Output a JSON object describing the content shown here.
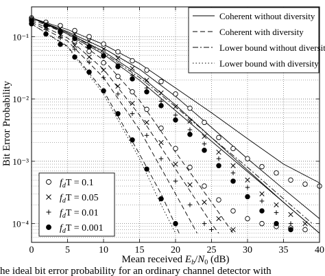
{
  "caption": "he ideal bit error probability for an ordinary channel detector with",
  "chart_data": {
    "type": "line",
    "xlabel": "Mean received E_b/N_0 (dB)",
    "ylabel": "Bit Error Probability",
    "xlim": [
      0,
      40
    ],
    "ylim": [
      5e-05,
      0.3
    ],
    "yscale": "log",
    "x_ticks": [
      "0",
      "5",
      "10",
      "15",
      "20",
      "25",
      "30",
      "35",
      "40"
    ],
    "y_ticks": [
      "10⁻⁴",
      "10⁻³",
      "10⁻²",
      "10⁻¹"
    ],
    "grid": true,
    "legend_top": {
      "position": "top-right",
      "entries": [
        {
          "label": "Coherent without diversity",
          "style": "solid"
        },
        {
          "label": "Coherent with diversity",
          "style": "dashed"
        },
        {
          "label": "Lower bound without diversity",
          "style": "dashdot"
        },
        {
          "label": "Lower bound with diversity",
          "style": "dotted"
        }
      ]
    },
    "legend_bottom": {
      "position": "bottom-left",
      "entries": [
        {
          "marker": "circle-open",
          "prefix": "f",
          "sub": "d",
          "suffix": "T = 0.1"
        },
        {
          "marker": "x",
          "prefix": "f",
          "sub": "d",
          "suffix": "T = 0.05"
        },
        {
          "marker": "plus",
          "prefix": "f",
          "sub": "d",
          "suffix": "T = 0.01"
        },
        {
          "marker": "circle-filled",
          "prefix": "f",
          "sub": "d",
          "suffix": "T = 0.001"
        }
      ]
    },
    "line_series": [
      {
        "style": "solid",
        "points": [
          [
            0,
            0.2
          ],
          [
            5,
            0.13
          ],
          [
            10,
            0.075
          ],
          [
            15,
            0.037
          ],
          [
            20,
            0.015
          ],
          [
            25,
            0.006
          ],
          [
            30,
            0.0023
          ],
          [
            35,
            0.0009
          ],
          [
            40,
            0.00045
          ]
        ]
      },
      {
        "style": "solid",
        "points": [
          [
            0,
            0.2
          ],
          [
            5,
            0.12
          ],
          [
            10,
            0.065
          ],
          [
            15,
            0.03
          ],
          [
            20,
            0.011
          ],
          [
            25,
            0.0035
          ],
          [
            30,
            0.0011
          ],
          [
            35,
            0.00036
          ],
          [
            40,
            0.00012
          ]
        ]
      },
      {
        "style": "solid",
        "points": [
          [
            0,
            0.2
          ],
          [
            5,
            0.115
          ],
          [
            10,
            0.058
          ],
          [
            15,
            0.024
          ],
          [
            20,
            0.008
          ],
          [
            25,
            0.0024
          ],
          [
            30,
            0.00072
          ],
          [
            35,
            0.00022
          ],
          [
            40,
            7e-05
          ]
        ]
      },
      {
        "style": "solid",
        "points": [
          [
            0,
            0.2
          ],
          [
            5,
            0.11
          ],
          [
            10,
            0.052
          ],
          [
            15,
            0.02
          ],
          [
            20,
            0.0065
          ],
          [
            25,
            0.0021
          ],
          [
            30,
            0.00068
          ],
          [
            35,
            0.00022
          ],
          [
            40,
            7e-05
          ]
        ]
      },
      {
        "style": "dashed",
        "points": [
          [
            0,
            0.19
          ],
          [
            5,
            0.11
          ],
          [
            10,
            0.042
          ],
          [
            15,
            0.0095
          ],
          [
            20,
            0.0014
          ],
          [
            25,
            0.00022
          ],
          [
            28,
            7e-05
          ]
        ]
      },
      {
        "style": "dashed",
        "points": [
          [
            0,
            0.18
          ],
          [
            5,
            0.095
          ],
          [
            10,
            0.03
          ],
          [
            15,
            0.0055
          ],
          [
            20,
            0.00075
          ],
          [
            25,
            0.0001
          ],
          [
            26,
            7e-05
          ]
        ]
      },
      {
        "style": "dashed",
        "points": [
          [
            0,
            0.17
          ],
          [
            5,
            0.085
          ],
          [
            10,
            0.022
          ],
          [
            15,
            0.0032
          ],
          [
            20,
            0.0003
          ],
          [
            23,
            7e-05
          ]
        ]
      },
      {
        "style": "dashed",
        "points": [
          [
            0,
            0.16
          ],
          [
            5,
            0.07
          ],
          [
            10,
            0.0135
          ],
          [
            15,
            0.0013
          ],
          [
            18,
            0.0003
          ],
          [
            20.5,
            7e-05
          ]
        ]
      },
      {
        "style": "dashdot",
        "points": [
          [
            0,
            0.2
          ],
          [
            5,
            0.115
          ],
          [
            10,
            0.055
          ],
          [
            15,
            0.022
          ],
          [
            20,
            0.0075
          ],
          [
            25,
            0.0024
          ],
          [
            30,
            0.0008
          ],
          [
            35,
            0.00025
          ],
          [
            39,
            0.0001
          ]
        ]
      },
      {
        "style": "dotted",
        "points": [
          [
            0,
            0.16
          ],
          [
            5,
            0.068
          ],
          [
            10,
            0.012
          ],
          [
            15,
            0.0011
          ],
          [
            18,
            0.0002
          ],
          [
            20,
            7e-05
          ]
        ]
      }
    ],
    "marker_series": [
      {
        "name": "f_dT = 0.1",
        "marker": "circle-open",
        "points": [
          [
            0,
            0.2
          ],
          [
            2,
            0.17
          ],
          [
            4,
            0.15
          ],
          [
            6,
            0.125
          ],
          [
            8,
            0.1
          ],
          [
            10,
            0.076
          ],
          [
            12,
            0.057
          ],
          [
            14,
            0.041
          ],
          [
            16,
            0.029
          ],
          [
            18,
            0.019
          ],
          [
            20,
            0.012
          ],
          [
            22,
            0.0071
          ],
          [
            24,
            0.0042
          ],
          [
            26,
            0.0024
          ],
          [
            28,
            0.0016
          ],
          [
            30,
            0.0011
          ],
          [
            32,
            0.00082
          ],
          [
            34,
            0.00065
          ],
          [
            36,
            0.0005
          ],
          [
            38,
            0.00043
          ],
          [
            40,
            0.0004
          ]
        ]
      },
      {
        "name": "f_dT = 0.1",
        "marker": "circle-open",
        "points": [
          [
            0,
            0.19
          ],
          [
            2,
            0.15
          ],
          [
            4,
            0.12
          ],
          [
            6,
            0.085
          ],
          [
            8,
            0.058
          ],
          [
            10,
            0.038
          ],
          [
            12,
            0.023
          ],
          [
            14,
            0.013
          ],
          [
            16,
            0.0068
          ],
          [
            18,
            0.0034
          ],
          [
            20,
            0.0016
          ],
          [
            22,
            0.0008
          ],
          [
            24,
            0.0004
          ],
          [
            26,
            0.00024
          ],
          [
            28,
            0.00016
          ],
          [
            30,
            0.00012
          ],
          [
            32,
            0.0001
          ],
          [
            34,
            9e-05
          ],
          [
            36,
            8.5e-05
          ],
          [
            38,
            8e-05
          ]
        ]
      },
      {
        "name": "f_dT = 0.05",
        "marker": "x",
        "points": [
          [
            0,
            0.19
          ],
          [
            2,
            0.16
          ],
          [
            4,
            0.135
          ],
          [
            6,
            0.11
          ],
          [
            8,
            0.085
          ],
          [
            10,
            0.063
          ],
          [
            12,
            0.045
          ],
          [
            14,
            0.031
          ],
          [
            16,
            0.02
          ],
          [
            18,
            0.0125
          ],
          [
            20,
            0.0075
          ],
          [
            22,
            0.0044
          ],
          [
            24,
            0.0025
          ],
          [
            26,
            0.0014
          ],
          [
            28,
            0.00085
          ],
          [
            30,
            0.0005
          ],
          [
            32,
            0.0003
          ],
          [
            34,
            0.0002
          ],
          [
            36,
            0.00014
          ],
          [
            38,
            0.0001
          ]
        ]
      },
      {
        "name": "f_dT = 0.05",
        "marker": "x",
        "points": [
          [
            0,
            0.18
          ],
          [
            2,
            0.14
          ],
          [
            4,
            0.105
          ],
          [
            6,
            0.072
          ],
          [
            8,
            0.047
          ],
          [
            10,
            0.029
          ],
          [
            12,
            0.016
          ],
          [
            14,
            0.0085
          ],
          [
            16,
            0.0042
          ],
          [
            18,
            0.002
          ],
          [
            20,
            0.0009
          ],
          [
            22,
            0.00042
          ],
          [
            24,
            0.00022
          ],
          [
            26,
            0.00012
          ],
          [
            28,
            8e-05
          ]
        ]
      },
      {
        "name": "f_dT = 0.01",
        "marker": "plus",
        "points": [
          [
            0,
            0.19
          ],
          [
            2,
            0.155
          ],
          [
            4,
            0.125
          ],
          [
            6,
            0.097
          ],
          [
            8,
            0.073
          ],
          [
            10,
            0.052
          ],
          [
            12,
            0.036
          ],
          [
            14,
            0.024
          ],
          [
            16,
            0.015
          ],
          [
            18,
            0.0092
          ],
          [
            20,
            0.0055
          ],
          [
            22,
            0.0032
          ],
          [
            24,
            0.0019
          ],
          [
            26,
            0.0011
          ],
          [
            28,
            0.00065
          ],
          [
            30,
            0.00038
          ],
          [
            32,
            0.00023
          ],
          [
            34,
            0.00015
          ],
          [
            36,
            0.0001
          ]
        ]
      },
      {
        "name": "f_dT = 0.01",
        "marker": "plus",
        "points": [
          [
            0,
            0.17
          ],
          [
            2,
            0.13
          ],
          [
            4,
            0.095
          ],
          [
            6,
            0.063
          ],
          [
            8,
            0.039
          ],
          [
            10,
            0.022
          ],
          [
            12,
            0.012
          ],
          [
            14,
            0.0058
          ],
          [
            16,
            0.0026
          ],
          [
            18,
            0.0011
          ],
          [
            20,
            0.00048
          ],
          [
            22,
            0.0002
          ],
          [
            24,
            0.0001
          ],
          [
            25,
            8e-05
          ]
        ]
      },
      {
        "name": "f_dT = 0.001",
        "marker": "circle-filled",
        "points": [
          [
            0,
            0.18
          ],
          [
            2,
            0.15
          ],
          [
            4,
            0.12
          ],
          [
            6,
            0.093
          ],
          [
            8,
            0.069
          ],
          [
            10,
            0.049
          ],
          [
            12,
            0.033
          ],
          [
            14,
            0.021
          ],
          [
            16,
            0.013
          ],
          [
            18,
            0.0078
          ],
          [
            20,
            0.0046
          ],
          [
            22,
            0.0027
          ],
          [
            24,
            0.0015
          ],
          [
            26,
            0.00085
          ],
          [
            28,
            0.00048
          ],
          [
            30,
            0.00027
          ],
          [
            32,
            0.00016
          ],
          [
            34,
            0.0001
          ],
          [
            36,
            8e-05
          ]
        ]
      },
      {
        "name": "f_dT = 0.001",
        "marker": "circle-filled",
        "points": [
          [
            0,
            0.16
          ],
          [
            2,
            0.11
          ],
          [
            4,
            0.075
          ],
          [
            6,
            0.047
          ],
          [
            8,
            0.027
          ],
          [
            10,
            0.0135
          ],
          [
            12,
            0.0058
          ],
          [
            14,
            0.0022
          ],
          [
            16,
            0.00075
          ],
          [
            18,
            0.00025
          ],
          [
            20,
            0.0001
          ]
        ]
      }
    ]
  }
}
